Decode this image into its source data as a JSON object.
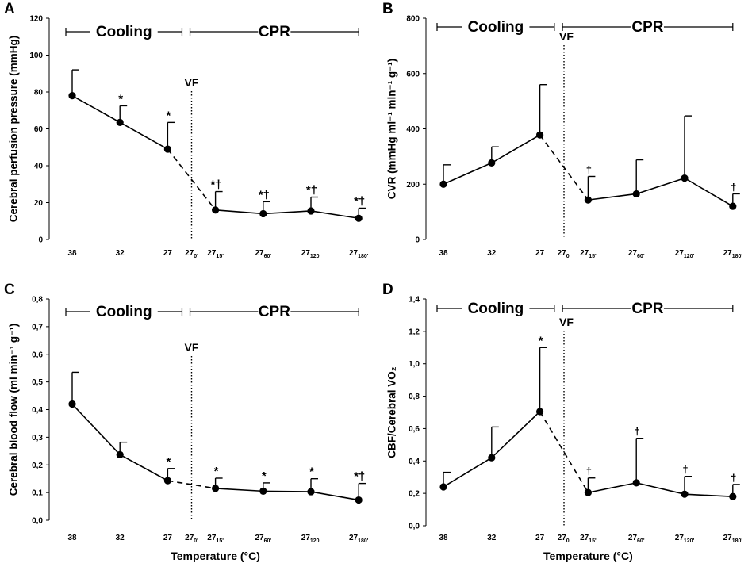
{
  "chart_data": [
    {
      "id": "A",
      "type": "line",
      "panel_label": "A",
      "ylabel": "Cerebral perfusion pressure (mmHg)",
      "xlabel": "",
      "ylim": [
        0,
        120
      ],
      "yticks": [
        "0",
        "20",
        "40",
        "60",
        "80",
        "100",
        "120"
      ],
      "ytick_values": [
        0,
        20,
        40,
        60,
        80,
        100,
        120
      ],
      "vf_label": "VF",
      "vf_label_pos": "above",
      "phases": [
        {
          "label": "Cooling",
          "from": 0,
          "to": 2.3
        },
        {
          "label": "CPR",
          "from": 2.6,
          "to": 6
        }
      ],
      "points": [
        {
          "x": 0,
          "label": "38",
          "sub": "",
          "y": 78,
          "err": 92,
          "ann": ""
        },
        {
          "x": 1,
          "label": "32",
          "sub": "",
          "y": 63.5,
          "err": 72.5,
          "ann": "*"
        },
        {
          "x": 2,
          "label": "27",
          "sub": "",
          "y": 49,
          "err": 63.5,
          "ann": "*"
        },
        {
          "x": 2.5,
          "label": "27",
          "sub": "0'",
          "y": null,
          "err": null,
          "ann": ""
        },
        {
          "x": 3,
          "label": "27",
          "sub": "15'",
          "y": 16,
          "err": 26,
          "ann": "*†"
        },
        {
          "x": 4,
          "label": "27",
          "sub": "60'",
          "y": 14,
          "err": 20.5,
          "ann": "*†"
        },
        {
          "x": 5,
          "label": "27",
          "sub": "120'",
          "y": 15.5,
          "err": 23,
          "ann": "*†"
        },
        {
          "x": 6,
          "label": "27",
          "sub": "180'",
          "y": 11.5,
          "err": 17,
          "ann": "*†"
        }
      ]
    },
    {
      "id": "B",
      "type": "line",
      "panel_label": "B",
      "ylabel": "CVR (mmHg ml⁻¹ min⁻¹ g⁻¹)",
      "xlabel": "",
      "ylim": [
        0,
        800
      ],
      "yticks": [
        "0",
        "200",
        "400",
        "600",
        "800"
      ],
      "ytick_values": [
        0,
        200,
        400,
        600,
        800
      ],
      "vf_label": "VF",
      "vf_label_pos": "below",
      "phases": [
        {
          "label": "Cooling",
          "from": 0,
          "to": 2.3
        },
        {
          "label": "CPR",
          "from": 2.6,
          "to": 6
        }
      ],
      "points": [
        {
          "x": 0,
          "label": "38",
          "sub": "",
          "y": 200,
          "err": 270,
          "ann": ""
        },
        {
          "x": 1,
          "label": "32",
          "sub": "",
          "y": 277,
          "err": 335,
          "ann": ""
        },
        {
          "x": 2,
          "label": "27",
          "sub": "",
          "y": 378,
          "err": 560,
          "ann": ""
        },
        {
          "x": 2.5,
          "label": "27",
          "sub": "0'",
          "y": null,
          "err": null,
          "ann": ""
        },
        {
          "x": 3,
          "label": "27",
          "sub": "15'",
          "y": 143,
          "err": 228,
          "ann": "†"
        },
        {
          "x": 4,
          "label": "27",
          "sub": "60'",
          "y": 165,
          "err": 288,
          "ann": ""
        },
        {
          "x": 5,
          "label": "27",
          "sub": "120'",
          "y": 222,
          "err": 447,
          "ann": ""
        },
        {
          "x": 6,
          "label": "27",
          "sub": "180'",
          "y": 120,
          "err": 165,
          "ann": "†"
        }
      ]
    },
    {
      "id": "C",
      "type": "line",
      "panel_label": "C",
      "ylabel": "Cerebral blood flow (ml min⁻¹ g⁻¹)",
      "xlabel": "Temperature (°C)",
      "ylim": [
        0,
        0.8
      ],
      "yticks": [
        "0,0",
        "0,1",
        "0,2",
        "0,3",
        "0,4",
        "0,5",
        "0,6",
        "0,7",
        "0,8"
      ],
      "ytick_values": [
        0,
        0.1,
        0.2,
        0.3,
        0.4,
        0.5,
        0.6,
        0.7,
        0.8
      ],
      "vf_label": "VF",
      "vf_label_pos": "above",
      "phases": [
        {
          "label": "Cooling",
          "from": 0,
          "to": 2.3
        },
        {
          "label": "CPR",
          "from": 2.6,
          "to": 6
        }
      ],
      "points": [
        {
          "x": 0,
          "label": "38",
          "sub": "",
          "y": 0.42,
          "err": 0.535,
          "ann": ""
        },
        {
          "x": 1,
          "label": "32",
          "sub": "",
          "y": 0.237,
          "err": 0.282,
          "ann": ""
        },
        {
          "x": 2,
          "label": "27",
          "sub": "",
          "y": 0.143,
          "err": 0.187,
          "ann": "*"
        },
        {
          "x": 2.5,
          "label": "27",
          "sub": "0'",
          "y": null,
          "err": null,
          "ann": ""
        },
        {
          "x": 3,
          "label": "27",
          "sub": "15'",
          "y": 0.115,
          "err": 0.152,
          "ann": "*"
        },
        {
          "x": 4,
          "label": "27",
          "sub": "60'",
          "y": 0.105,
          "err": 0.135,
          "ann": "*"
        },
        {
          "x": 5,
          "label": "27",
          "sub": "120'",
          "y": 0.103,
          "err": 0.15,
          "ann": "*"
        },
        {
          "x": 6,
          "label": "27",
          "sub": "180'",
          "y": 0.073,
          "err": 0.133,
          "ann": "*†"
        }
      ]
    },
    {
      "id": "D",
      "type": "line",
      "panel_label": "D",
      "ylabel": "CBF/Cerebral VO₂",
      "xlabel": "Temperature (°C)",
      "ylim": [
        0,
        1.4
      ],
      "yticks": [
        "0,0",
        "0,2",
        "0,4",
        "0,6",
        "0,8",
        "1,0",
        "1,2",
        "1,4"
      ],
      "ytick_values": [
        0,
        0.2,
        0.4,
        0.6,
        0.8,
        1.0,
        1.2,
        1.4
      ],
      "vf_label": "VF",
      "vf_label_pos": "below",
      "phases": [
        {
          "label": "Cooling",
          "from": 0,
          "to": 2.3
        },
        {
          "label": "CPR",
          "from": 2.6,
          "to": 6
        }
      ],
      "points": [
        {
          "x": 0,
          "label": "38",
          "sub": "",
          "y": 0.24,
          "err": 0.33,
          "ann": ""
        },
        {
          "x": 1,
          "label": "32",
          "sub": "",
          "y": 0.42,
          "err": 0.61,
          "ann": ""
        },
        {
          "x": 2,
          "label": "27",
          "sub": "",
          "y": 0.705,
          "err": 1.1,
          "ann": "*"
        },
        {
          "x": 2.5,
          "label": "27",
          "sub": "0'",
          "y": null,
          "err": null,
          "ann": ""
        },
        {
          "x": 3,
          "label": "27",
          "sub": "15'",
          "y": 0.205,
          "err": 0.295,
          "ann": "†"
        },
        {
          "x": 4,
          "label": "27",
          "sub": "60'",
          "y": 0.265,
          "err": 0.54,
          "ann": "†"
        },
        {
          "x": 5,
          "label": "27",
          "sub": "120'",
          "y": 0.195,
          "err": 0.305,
          "ann": "†"
        },
        {
          "x": 6,
          "label": "27",
          "sub": "180'",
          "y": 0.18,
          "err": 0.255,
          "ann": "†"
        }
      ]
    }
  ]
}
